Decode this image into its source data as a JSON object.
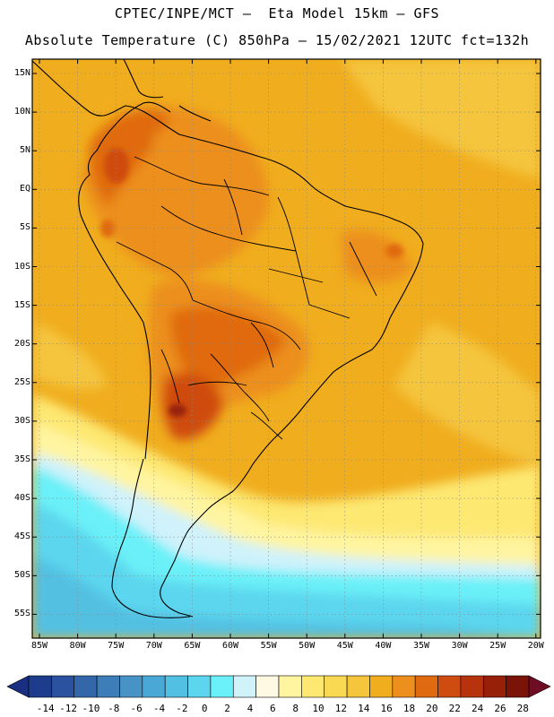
{
  "title": {
    "line1": "CPTEC/INPE/MCT –  Eta Model 15km – GFS",
    "line2": "Absolute Temperature (C) 850hPa – 15/02/2021 12UTC fct=132h"
  },
  "latitude_labels": [
    "15N",
    "10N",
    "5N",
    "EQ",
    "5S",
    "10S",
    "15S",
    "20S",
    "25S",
    "30S",
    "35S",
    "40S",
    "45S",
    "50S",
    "55S"
  ],
  "longitude_labels": [
    "85W",
    "80W",
    "75W",
    "70W",
    "65W",
    "60W",
    "55W",
    "50W",
    "45W",
    "40W",
    "35W",
    "30W",
    "25W",
    "20W"
  ],
  "colorbar": {
    "labels": [
      "-14",
      "-12",
      "-10",
      "-8",
      "-6",
      "-4",
      "-2",
      "0",
      "2",
      "4",
      "6",
      "8",
      "10",
      "12",
      "14",
      "16",
      "18",
      "20",
      "22",
      "24",
      "26",
      "28"
    ],
    "colors": [
      "#1e3c8c",
      "#2a529e",
      "#3367aa",
      "#3d7db8",
      "#4893c6",
      "#4aa8d6",
      "#52c0e2",
      "#5cd6ee",
      "#6af0f8",
      "#cff2fb",
      "#fff8e2",
      "#fff4a0",
      "#fde872",
      "#f9d852",
      "#f5c53c",
      "#f0ad1e",
      "#ec8f1c",
      "#e06a10",
      "#cf4c10",
      "#b6330e",
      "#962008",
      "#7a1408"
    ],
    "low_arrow_color": "#1a2f80",
    "high_arrow_color": "#6e0d24"
  }
}
